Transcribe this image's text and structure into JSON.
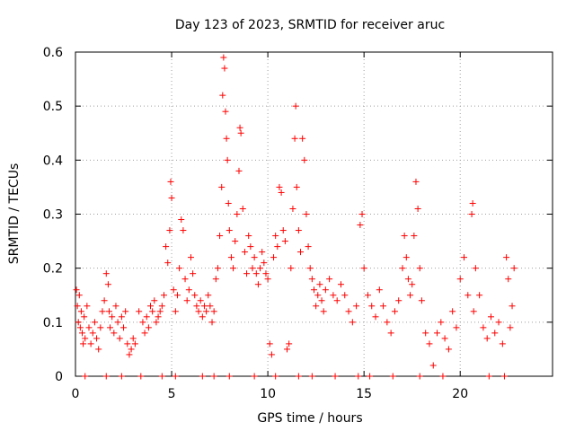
{
  "chart_data": {
    "type": "scatter",
    "title": "Day 123 of 2023, SRMTID for receiver aruc",
    "xlabel": "GPS time / hours",
    "ylabel": "SRMTID / TECUs",
    "xlim": [
      0,
      24.8
    ],
    "ylim": [
      0,
      0.6
    ],
    "xticks": [
      0,
      5,
      10,
      15,
      20
    ],
    "yticks": [
      0,
      0.1,
      0.2,
      0.3,
      0.4,
      0.5,
      0.6
    ],
    "ytick_labels": [
      "0",
      "0.1",
      "0.2",
      "0.3",
      "0.4",
      "0.5",
      "0.6"
    ],
    "grid": true,
    "marker": "+",
    "series": [
      {
        "name": "SRMTID",
        "color": "#ff0000",
        "points": [
          [
            0.05,
            0.16
          ],
          [
            0.1,
            0.13
          ],
          [
            0.15,
            0.1
          ],
          [
            0.2,
            0.15
          ],
          [
            0.25,
            0.09
          ],
          [
            0.3,
            0.12
          ],
          [
            0.35,
            0.08
          ],
          [
            0.4,
            0.06
          ],
          [
            0.45,
            0.11
          ],
          [
            0.5,
            0.07
          ],
          [
            0.6,
            0.13
          ],
          [
            0.7,
            0.09
          ],
          [
            0.8,
            0.06
          ],
          [
            0.9,
            0.08
          ],
          [
            1.0,
            0.1
          ],
          [
            1.1,
            0.07
          ],
          [
            1.2,
            0.05
          ],
          [
            1.3,
            0.09
          ],
          [
            1.4,
            0.12
          ],
          [
            1.5,
            0.14
          ],
          [
            1.6,
            0.19
          ],
          [
            1.7,
            0.17
          ],
          [
            1.75,
            0.12
          ],
          [
            1.8,
            0.09
          ],
          [
            1.9,
            0.11
          ],
          [
            2.0,
            0.08
          ],
          [
            2.1,
            0.13
          ],
          [
            2.2,
            0.1
          ],
          [
            2.3,
            0.07
          ],
          [
            2.4,
            0.11
          ],
          [
            2.5,
            0.09
          ],
          [
            2.6,
            0.12
          ],
          [
            2.7,
            0.06
          ],
          [
            2.8,
            0.04
          ],
          [
            2.9,
            0.05
          ],
          [
            3.0,
            0.07
          ],
          [
            3.1,
            0.06
          ],
          [
            3.3,
            0.12
          ],
          [
            3.5,
            0.1
          ],
          [
            3.6,
            0.08
          ],
          [
            3.7,
            0.11
          ],
          [
            3.8,
            0.09
          ],
          [
            3.9,
            0.13
          ],
          [
            4.0,
            0.12
          ],
          [
            4.1,
            0.14
          ],
          [
            4.2,
            0.1
          ],
          [
            4.3,
            0.11
          ],
          [
            4.4,
            0.12
          ],
          [
            4.5,
            0.13
          ],
          [
            4.6,
            0.15
          ],
          [
            4.7,
            0.24
          ],
          [
            4.8,
            0.21
          ],
          [
            4.9,
            0.27
          ],
          [
            4.95,
            0.36
          ],
          [
            5.0,
            0.33
          ],
          [
            5.1,
            0.16
          ],
          [
            5.2,
            0.12
          ],
          [
            5.3,
            0.15
          ],
          [
            5.4,
            0.2
          ],
          [
            5.5,
            0.29
          ],
          [
            5.6,
            0.27
          ],
          [
            5.7,
            0.18
          ],
          [
            5.8,
            0.14
          ],
          [
            5.9,
            0.16
          ],
          [
            6.0,
            0.22
          ],
          [
            6.1,
            0.19
          ],
          [
            6.2,
            0.15
          ],
          [
            6.3,
            0.13
          ],
          [
            6.4,
            0.12
          ],
          [
            6.5,
            0.14
          ],
          [
            6.6,
            0.11
          ],
          [
            6.7,
            0.13
          ],
          [
            6.8,
            0.12
          ],
          [
            6.9,
            0.15
          ],
          [
            7.0,
            0.13
          ],
          [
            7.1,
            0.1
          ],
          [
            7.2,
            0.12
          ],
          [
            7.3,
            0.18
          ],
          [
            7.4,
            0.2
          ],
          [
            7.5,
            0.26
          ],
          [
            7.6,
            0.35
          ],
          [
            7.65,
            0.52
          ],
          [
            7.7,
            0.59
          ],
          [
            7.75,
            0.57
          ],
          [
            7.8,
            0.49
          ],
          [
            7.85,
            0.44
          ],
          [
            7.9,
            0.4
          ],
          [
            7.95,
            0.32
          ],
          [
            8.0,
            0.27
          ],
          [
            8.1,
            0.22
          ],
          [
            8.2,
            0.2
          ],
          [
            8.3,
            0.25
          ],
          [
            8.4,
            0.3
          ],
          [
            8.5,
            0.38
          ],
          [
            8.55,
            0.46
          ],
          [
            8.6,
            0.45
          ],
          [
            8.7,
            0.31
          ],
          [
            8.8,
            0.23
          ],
          [
            8.9,
            0.19
          ],
          [
            9.0,
            0.26
          ],
          [
            9.1,
            0.24
          ],
          [
            9.2,
            0.2
          ],
          [
            9.3,
            0.22
          ],
          [
            9.4,
            0.19
          ],
          [
            9.5,
            0.17
          ],
          [
            9.6,
            0.2
          ],
          [
            9.7,
            0.23
          ],
          [
            9.8,
            0.21
          ],
          [
            9.9,
            0.19
          ],
          [
            10.0,
            0.18
          ],
          [
            10.1,
            0.06
          ],
          [
            10.2,
            0.04
          ],
          [
            10.3,
            0.22
          ],
          [
            10.4,
            0.26
          ],
          [
            10.5,
            0.24
          ],
          [
            10.6,
            0.35
          ],
          [
            10.7,
            0.34
          ],
          [
            10.8,
            0.27
          ],
          [
            10.9,
            0.25
          ],
          [
            11.0,
            0.05
          ],
          [
            11.1,
            0.06
          ],
          [
            11.2,
            0.2
          ],
          [
            11.3,
            0.31
          ],
          [
            11.4,
            0.44
          ],
          [
            11.45,
            0.5
          ],
          [
            11.5,
            0.35
          ],
          [
            11.6,
            0.27
          ],
          [
            11.7,
            0.23
          ],
          [
            11.8,
            0.44
          ],
          [
            11.9,
            0.4
          ],
          [
            12.0,
            0.3
          ],
          [
            12.1,
            0.24
          ],
          [
            12.2,
            0.2
          ],
          [
            12.3,
            0.18
          ],
          [
            12.4,
            0.16
          ],
          [
            12.5,
            0.13
          ],
          [
            12.6,
            0.15
          ],
          [
            12.7,
            0.17
          ],
          [
            12.8,
            0.14
          ],
          [
            12.9,
            0.12
          ],
          [
            13.0,
            0.16
          ],
          [
            13.2,
            0.18
          ],
          [
            13.4,
            0.15
          ],
          [
            13.6,
            0.14
          ],
          [
            13.8,
            0.17
          ],
          [
            14.0,
            0.15
          ],
          [
            14.2,
            0.12
          ],
          [
            14.4,
            0.1
          ],
          [
            14.6,
            0.13
          ],
          [
            14.8,
            0.28
          ],
          [
            14.9,
            0.3
          ],
          [
            15.0,
            0.2
          ],
          [
            15.2,
            0.15
          ],
          [
            15.4,
            0.13
          ],
          [
            15.6,
            0.11
          ],
          [
            15.8,
            0.16
          ],
          [
            16.0,
            0.13
          ],
          [
            16.2,
            0.1
          ],
          [
            16.4,
            0.08
          ],
          [
            16.6,
            0.12
          ],
          [
            16.8,
            0.14
          ],
          [
            17.0,
            0.2
          ],
          [
            17.1,
            0.26
          ],
          [
            17.2,
            0.22
          ],
          [
            17.3,
            0.18
          ],
          [
            17.4,
            0.15
          ],
          [
            17.5,
            0.17
          ],
          [
            17.6,
            0.26
          ],
          [
            17.7,
            0.36
          ],
          [
            17.8,
            0.31
          ],
          [
            17.9,
            0.2
          ],
          [
            18.0,
            0.14
          ],
          [
            18.2,
            0.08
          ],
          [
            18.4,
            0.06
          ],
          [
            18.6,
            0.02
          ],
          [
            18.8,
            0.08
          ],
          [
            19.0,
            0.1
          ],
          [
            19.2,
            0.07
          ],
          [
            19.4,
            0.05
          ],
          [
            19.6,
            0.12
          ],
          [
            19.8,
            0.09
          ],
          [
            20.0,
            0.18
          ],
          [
            20.2,
            0.22
          ],
          [
            20.4,
            0.15
          ],
          [
            20.6,
            0.3
          ],
          [
            20.65,
            0.32
          ],
          [
            20.7,
            0.12
          ],
          [
            20.8,
            0.2
          ],
          [
            21.0,
            0.15
          ],
          [
            21.2,
            0.09
          ],
          [
            21.4,
            0.07
          ],
          [
            21.6,
            0.11
          ],
          [
            21.8,
            0.08
          ],
          [
            22.0,
            0.1
          ],
          [
            22.2,
            0.06
          ],
          [
            22.4,
            0.22
          ],
          [
            22.5,
            0.18
          ],
          [
            22.6,
            0.09
          ],
          [
            22.7,
            0.13
          ],
          [
            22.8,
            0.2
          ],
          [
            0.5,
            0
          ],
          [
            1.6,
            0
          ],
          [
            2.4,
            0
          ],
          [
            3.4,
            0
          ],
          [
            4.5,
            0
          ],
          [
            5.2,
            0
          ],
          [
            6.6,
            0
          ],
          [
            7.2,
            0
          ],
          [
            8.0,
            0
          ],
          [
            9.3,
            0
          ],
          [
            10.4,
            0
          ],
          [
            11.6,
            0
          ],
          [
            12.3,
            0
          ],
          [
            13.5,
            0
          ],
          [
            14.7,
            0
          ],
          [
            15.3,
            0
          ],
          [
            16.5,
            0
          ],
          [
            17.9,
            0
          ],
          [
            19.1,
            0
          ],
          [
            21.5,
            0
          ],
          [
            22.3,
            0
          ]
        ]
      }
    ]
  }
}
